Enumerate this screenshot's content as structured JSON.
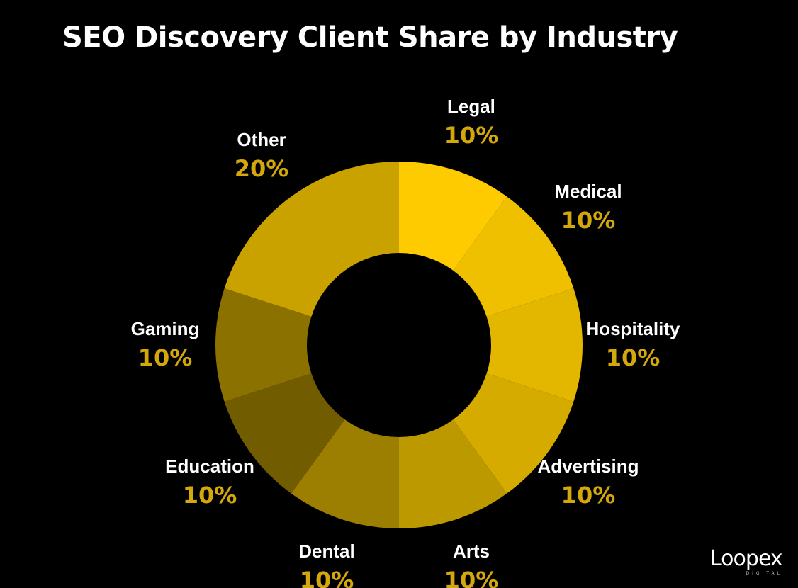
{
  "chart_data": {
    "type": "pie",
    "variant": "donut",
    "title": "SEO Discovery Client Share by Industry",
    "categories": [
      "Legal",
      "Medical",
      "Hospitality",
      "Advertising",
      "Arts",
      "Dental",
      "Education",
      "Gaming",
      "Other"
    ],
    "values": [
      10,
      10,
      10,
      10,
      10,
      10,
      10,
      10,
      20
    ],
    "value_labels": [
      "10%",
      "10%",
      "10%",
      "10%",
      "10%",
      "10%",
      "10%",
      "10%",
      "20%"
    ],
    "colors": [
      "#fdcb00",
      "#eec000",
      "#e3b700",
      "#d5ab00",
      "#bd9900",
      "#9c7e00",
      "#725c00",
      "#8b7100",
      "#c9a200"
    ],
    "start": "top",
    "direction": "clockwise",
    "legend": "none"
  },
  "theme": {
    "background": "#000000",
    "title_color": "#ffffff",
    "category_color": "#ffffff",
    "percent_color": "#d4a70a"
  },
  "branding": {
    "logo_text": "Loopex",
    "logo_subtext": "DIGITAL"
  }
}
